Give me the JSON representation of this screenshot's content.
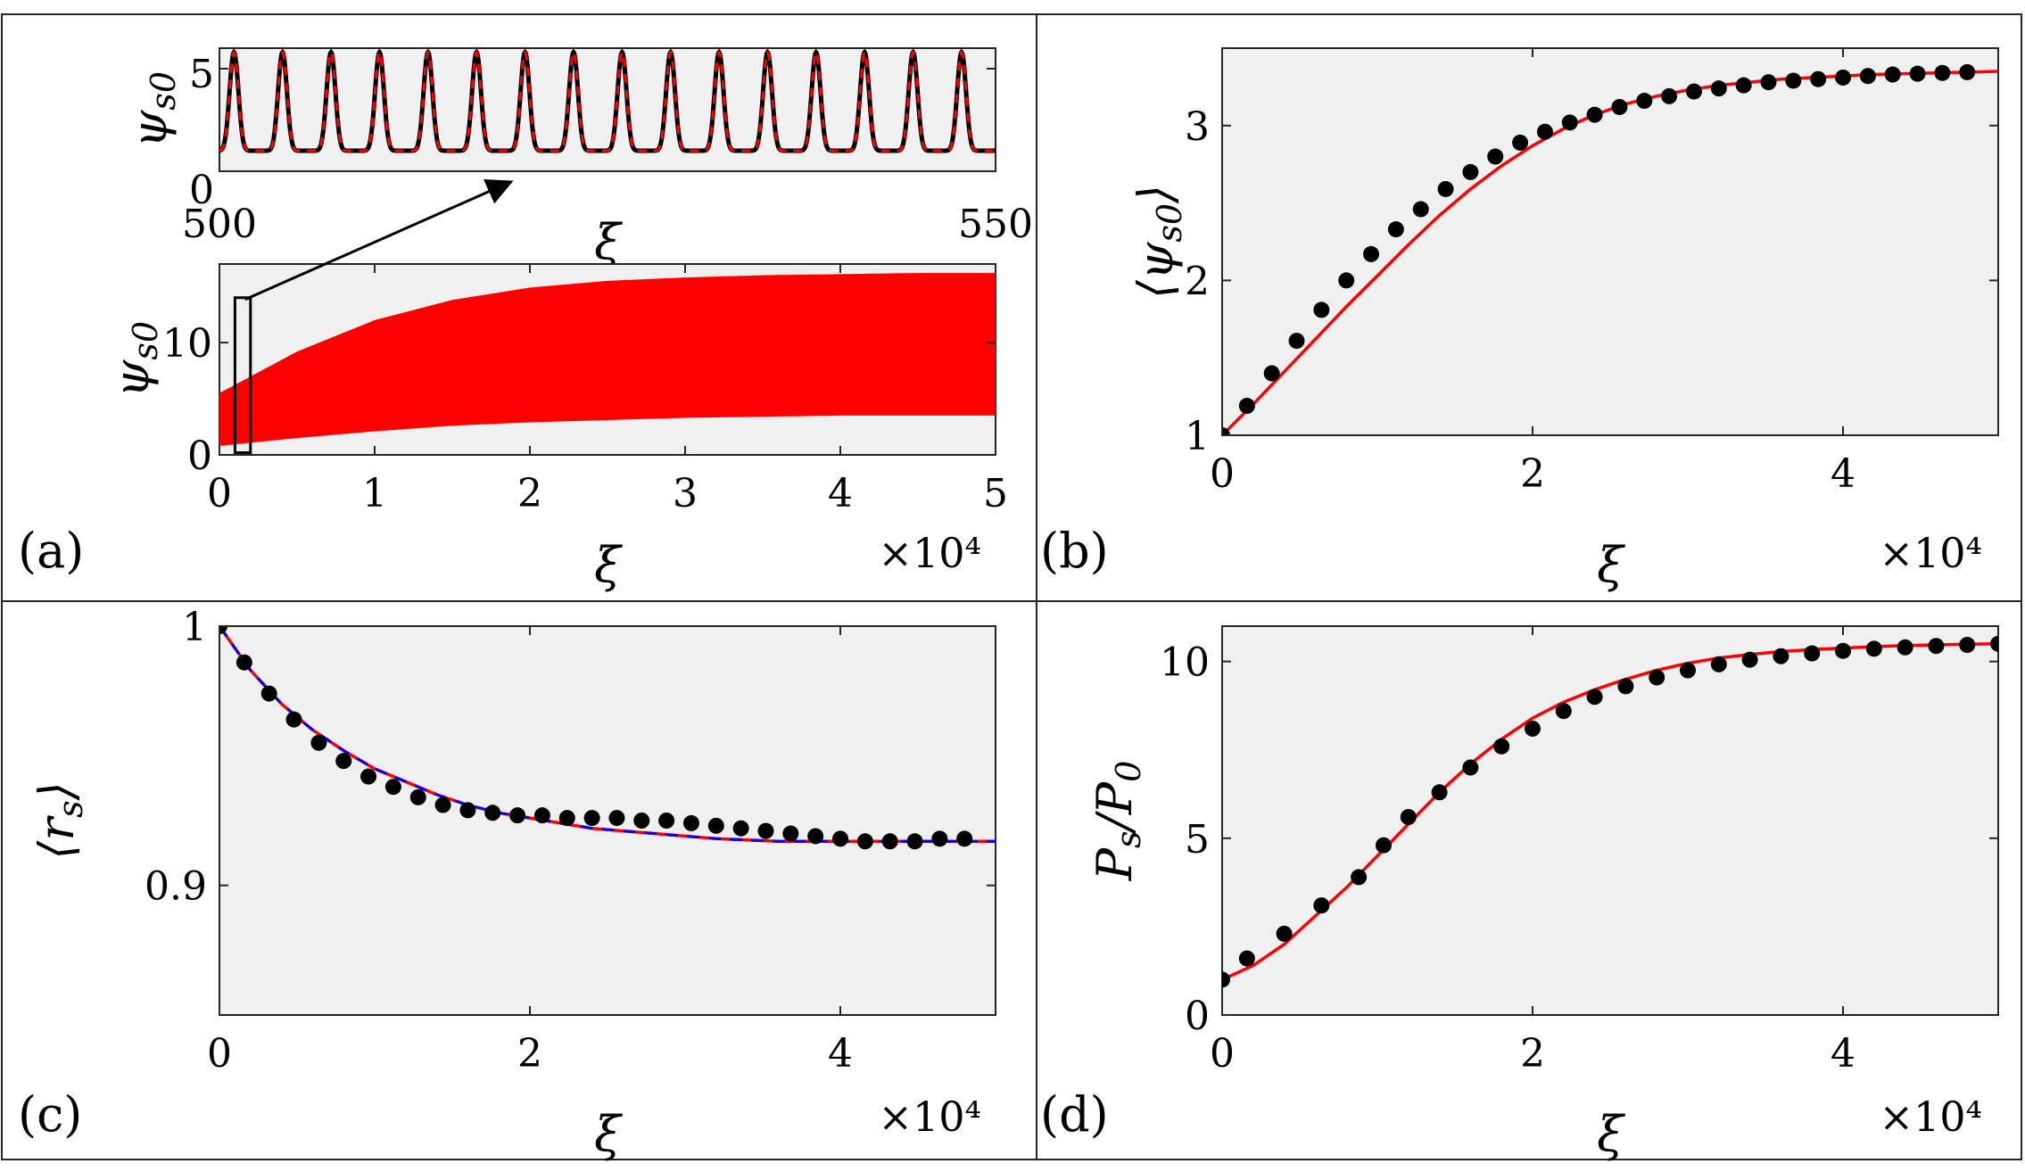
{
  "chart_data": [
    {
      "panel": "(a)",
      "type": "line",
      "inset": {
        "ylabel": "ψ",
        "ylabel_sub": "s0",
        "xlabel": "ξ",
        "xlim": [
          500,
          550
        ],
        "ylim": [
          0,
          6
        ],
        "xticks": [
          "500",
          "550"
        ],
        "yticks": [
          "0",
          "5"
        ],
        "peaks": 16,
        "min": 1.0,
        "max": 5.8,
        "series": [
          {
            "style": "solid",
            "color": "#000000"
          },
          {
            "style": "dashed",
            "color": "#ff0000"
          }
        ]
      },
      "main": {
        "ylabel": "ψ",
        "ylabel_sub": "s0",
        "xlabel": "ξ",
        "multiplier": "×10⁴",
        "xlim": [
          0,
          5
        ],
        "ylim": [
          0,
          17
        ],
        "xticks": [
          "0",
          "1",
          "2",
          "3",
          "4",
          "5"
        ],
        "yticks": [
          "0",
          "10"
        ],
        "x": [
          0,
          0.5,
          1,
          1.5,
          2,
          2.5,
          3,
          3.5,
          4,
          4.5,
          5
        ],
        "envelope_max": [
          5.5,
          9.2,
          12.0,
          13.8,
          14.9,
          15.5,
          15.8,
          16.0,
          16.1,
          16.2,
          16.2
        ],
        "envelope_min": [
          0.8,
          1.5,
          2.1,
          2.6,
          2.9,
          3.1,
          3.3,
          3.4,
          3.5,
          3.5,
          3.5
        ],
        "fill_color": "#ff0000",
        "zoom_box": {
          "x": [
            0.1,
            0.2
          ],
          "y": [
            0.2,
            14.0
          ]
        }
      }
    },
    {
      "panel": "(b)",
      "type": "line",
      "ylabel": "⟨ψ",
      "ylabel_sub": "s0",
      "ylabel_close": "⟩",
      "xlabel": "ξ",
      "multiplier": "×10⁴",
      "xlim": [
        0,
        5
      ],
      "ylim": [
        1,
        3.5
      ],
      "xticks": [
        "0",
        "2",
        "4"
      ],
      "yticks": [
        "1",
        "2",
        "3"
      ],
      "line": {
        "color": "#ff0000",
        "x": [
          0,
          0.2,
          0.4,
          0.6,
          0.8,
          1.0,
          1.2,
          1.4,
          1.6,
          1.8,
          2.0,
          2.2,
          2.4,
          2.6,
          2.8,
          3.0,
          3.2,
          3.4,
          3.6,
          3.8,
          4.0,
          4.2,
          4.4,
          4.6,
          4.8,
          5.0
        ],
        "y": [
          1.0,
          1.2,
          1.41,
          1.62,
          1.83,
          2.03,
          2.23,
          2.42,
          2.59,
          2.74,
          2.87,
          2.98,
          3.07,
          3.14,
          3.19,
          3.23,
          3.26,
          3.28,
          3.3,
          3.31,
          3.32,
          3.33,
          3.335,
          3.34,
          3.345,
          3.35
        ]
      },
      "points": {
        "color": "#000000",
        "x": [
          0,
          0.16,
          0.32,
          0.48,
          0.64,
          0.8,
          0.96,
          1.12,
          1.28,
          1.44,
          1.6,
          1.76,
          1.92,
          2.08,
          2.24,
          2.4,
          2.56,
          2.72,
          2.88,
          3.04,
          3.2,
          3.36,
          3.52,
          3.68,
          3.84,
          4.0,
          4.16,
          4.32,
          4.48,
          4.64,
          4.8
        ],
        "y": [
          1.0,
          1.19,
          1.4,
          1.61,
          1.81,
          2.0,
          2.17,
          2.33,
          2.46,
          2.59,
          2.7,
          2.8,
          2.89,
          2.96,
          3.02,
          3.07,
          3.12,
          3.16,
          3.19,
          3.22,
          3.24,
          3.26,
          3.28,
          3.29,
          3.3,
          3.31,
          3.32,
          3.33,
          3.335,
          3.34,
          3.345
        ]
      }
    },
    {
      "panel": "(c)",
      "type": "line",
      "ylabel": "⟨r",
      "ylabel_sub": "s",
      "ylabel_close": "⟩",
      "xlabel": "ξ",
      "multiplier": "×10⁴",
      "xlim": [
        0,
        5
      ],
      "ylim": [
        0.85,
        1.0
      ],
      "xticks": [
        "0",
        "2",
        "4"
      ],
      "yticks": [
        "0.9",
        "1"
      ],
      "lines": [
        {
          "color": "#ff0000",
          "style": "solid"
        },
        {
          "color": "#0000ff",
          "style": "dashed"
        }
      ],
      "line_x": [
        0,
        0.2,
        0.4,
        0.6,
        0.8,
        1.0,
        1.2,
        1.4,
        1.6,
        1.8,
        2.0,
        2.4,
        2.8,
        3.2,
        3.6,
        4.0,
        4.4,
        4.8,
        5.0
      ],
      "line_y": [
        1.0,
        0.983,
        0.97,
        0.96,
        0.952,
        0.945,
        0.94,
        0.935,
        0.931,
        0.928,
        0.926,
        0.922,
        0.92,
        0.918,
        0.917,
        0.917,
        0.917,
        0.917,
        0.917
      ],
      "points": {
        "color": "#000000",
        "x": [
          0,
          0.16,
          0.32,
          0.48,
          0.64,
          0.8,
          0.96,
          1.12,
          1.28,
          1.44,
          1.6,
          1.76,
          1.92,
          2.08,
          2.24,
          2.4,
          2.56,
          2.72,
          2.88,
          3.04,
          3.2,
          3.36,
          3.52,
          3.68,
          3.84,
          4.0,
          4.16,
          4.32,
          4.48,
          4.64,
          4.8
        ],
        "y": [
          1.0,
          0.986,
          0.974,
          0.964,
          0.955,
          0.948,
          0.942,
          0.938,
          0.934,
          0.931,
          0.929,
          0.928,
          0.927,
          0.927,
          0.926,
          0.926,
          0.926,
          0.925,
          0.925,
          0.924,
          0.923,
          0.922,
          0.921,
          0.92,
          0.919,
          0.918,
          0.917,
          0.917,
          0.917,
          0.918,
          0.918
        ]
      }
    },
    {
      "panel": "(d)",
      "type": "line",
      "ylabel": "P",
      "ylabel_sub": "s",
      "ylabel_mid": "/P",
      "ylabel_sub2": "0",
      "xlabel": "ξ",
      "multiplier": "×10⁴",
      "xlim": [
        0,
        5
      ],
      "ylim": [
        0,
        11
      ],
      "xticks": [
        "0",
        "2",
        "4"
      ],
      "yticks": [
        "0",
        "5",
        "10"
      ],
      "line": {
        "color": "#ff0000",
        "x": [
          0,
          0.2,
          0.4,
          0.6,
          0.8,
          1.0,
          1.2,
          1.4,
          1.6,
          1.8,
          2.0,
          2.2,
          2.4,
          2.6,
          2.8,
          3.0,
          3.2,
          3.4,
          3.6,
          3.8,
          4.0,
          4.2,
          4.4,
          4.6,
          4.8,
          5.0
        ],
        "y": [
          1.0,
          1.4,
          2.0,
          2.8,
          3.6,
          4.5,
          5.4,
          6.3,
          7.1,
          7.8,
          8.4,
          8.85,
          9.2,
          9.5,
          9.75,
          9.95,
          10.1,
          10.2,
          10.28,
          10.34,
          10.38,
          10.42,
          10.45,
          10.47,
          10.49,
          10.5
        ]
      },
      "points": {
        "color": "#000000",
        "x": [
          0,
          0.16,
          0.4,
          0.64,
          0.88,
          1.04,
          1.2,
          1.4,
          1.6,
          1.8,
          2.0,
          2.2,
          2.4,
          2.6,
          2.8,
          3.0,
          3.2,
          3.4,
          3.6,
          3.8,
          4.0,
          4.2,
          4.4,
          4.6,
          4.8,
          5.0
        ],
        "y": [
          1.0,
          1.6,
          2.3,
          3.1,
          3.9,
          4.8,
          5.6,
          6.3,
          7.0,
          7.6,
          8.1,
          8.6,
          9.0,
          9.3,
          9.55,
          9.75,
          9.92,
          10.05,
          10.15,
          10.23,
          10.3,
          10.36,
          10.4,
          10.44,
          10.47,
          10.5
        ]
      }
    }
  ]
}
